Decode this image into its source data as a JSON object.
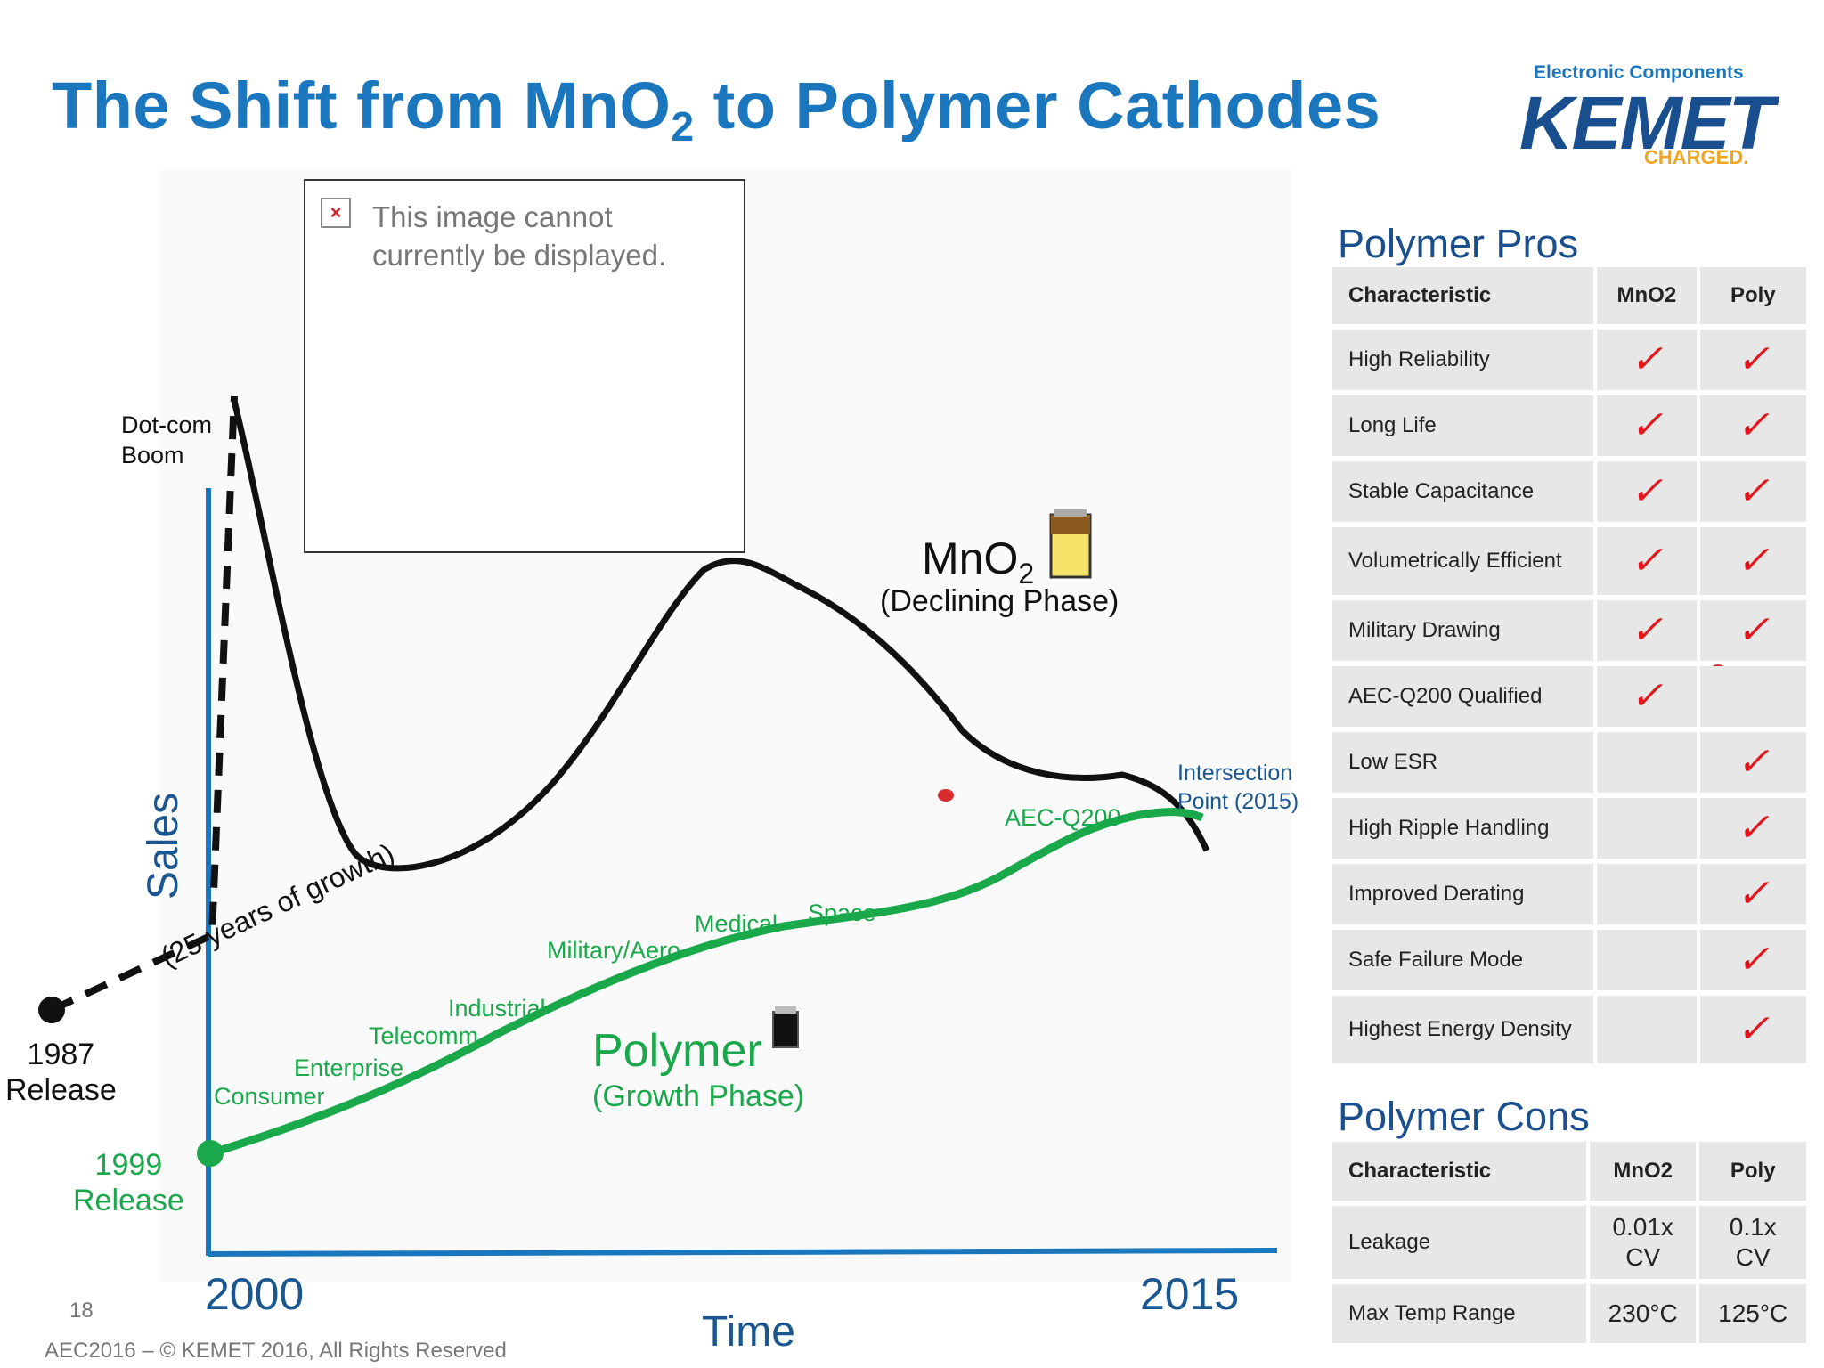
{
  "title": {
    "main": "The Shift from MnO",
    "sub": "2",
    "rest": " to Polymer Cathodes"
  },
  "logo": {
    "top": "Electronic Components",
    "main": "KEMET",
    "sub": "CHARGED."
  },
  "placeholder": {
    "icon": "broken-image-icon",
    "text_line1": "This image cannot",
    "text_line2": "currently be displayed."
  },
  "chart": {
    "dotcom": "Dot-com\nBoom",
    "release_1987": "1987\nRelease",
    "release_1999": "1999\nRelease",
    "growth": "(25 years of growth)",
    "y_axis": "Sales",
    "x_axis": "Time",
    "x_start": "2000",
    "x_end": "2015",
    "mno2_label": "MnO",
    "mno2_sub": "2",
    "mno2_phase": "(Declining Phase)",
    "polymer_label": "Polymer",
    "polymer_phase": "(Growth Phase)",
    "intersection": "Intersection\nPoint (2015)",
    "markets": [
      "Consumer",
      "Enterprise",
      "Telecomm",
      "Industrial",
      "Military/Aero",
      "Medical",
      "Space",
      "AEC-Q200"
    ]
  },
  "pros": {
    "title": "Polymer Pros",
    "headers": [
      "Characteristic",
      "MnO2",
      "Poly"
    ],
    "rows": [
      {
        "label": "High Reliability",
        "mno2": "✓",
        "poly": "✓"
      },
      {
        "label": "Long Life",
        "mno2": "✓",
        "poly": "✓"
      },
      {
        "label": "Stable Capacitance",
        "mno2": "✓",
        "poly": "✓"
      },
      {
        "label": "Volumetrically Efficient",
        "mno2": "✓",
        "poly": "✓"
      },
      {
        "label": "Military Drawing",
        "mno2": "✓",
        "poly": "✓"
      },
      {
        "label": "AEC-Q200 Qualified",
        "mno2": "✓",
        "poly": ""
      },
      {
        "label": "Low ESR",
        "mno2": "",
        "poly": "✓"
      },
      {
        "label": "High Ripple Handling",
        "mno2": "",
        "poly": "✓"
      },
      {
        "label": "Improved Derating",
        "mno2": "",
        "poly": "✓"
      },
      {
        "label": "Safe Failure Mode",
        "mno2": "",
        "poly": "✓"
      },
      {
        "label": "Highest Energy Density",
        "mno2": "",
        "poly": "✓"
      }
    ]
  },
  "cons": {
    "title": "Polymer Cons",
    "headers": [
      "Characteristic",
      "MnO2",
      "Poly"
    ],
    "rows": [
      {
        "label": "Leakage",
        "mno2": "0.01x CV",
        "poly": "0.1x CV"
      },
      {
        "label": "Max Temp Range",
        "mno2": "230°C",
        "poly": "125°C"
      }
    ]
  },
  "footer": {
    "page": "18",
    "copyright": "AEC2016 – © KEMET 2016, All Rights Reserved"
  },
  "colors": {
    "title": "#1a76bd",
    "axis": "#1a76bd",
    "polymer": "#19a84a",
    "mno2": "#111111",
    "check": "#e3161c"
  }
}
